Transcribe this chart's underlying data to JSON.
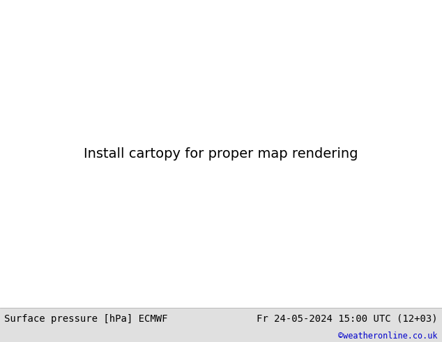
{
  "title_left": "Surface pressure [hPa] ECMWF",
  "title_right": "Fr 24-05-2024 15:00 UTC (12+03)",
  "credit": "©weatheronline.co.uk",
  "fig_width": 6.34,
  "fig_height": 4.9,
  "dpi": 100,
  "map_extent": [
    -120,
    -55,
    5,
    40
  ],
  "land_color": "#b8dba0",
  "sea_color": "#f0f0f0",
  "border_color": "#222222",
  "blue_color": "#2020cc",
  "red_color": "#cc2020",
  "black_color": "#111111",
  "gray_color": "#c8c8c8",
  "bottom_bar_color": "#e0e0e0",
  "title_fontsize": 10,
  "credit_fontsize": 8.5,
  "label_fontsize": 7.5
}
